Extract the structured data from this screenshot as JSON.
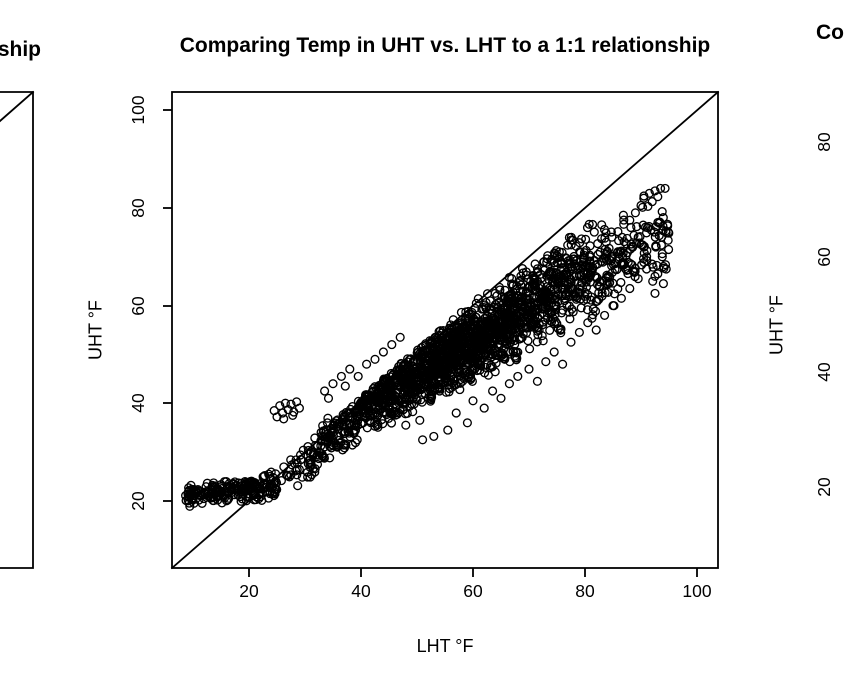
{
  "page": {
    "background_color": "#ffffff",
    "ink_color": "#000000",
    "description": "Three R base-graphics scatter plots side by side; only the center plot is fully visible, the left and right plots are cut off at the screen edges."
  },
  "panels": {
    "left_partial": {
      "title_fragment": "ship"
    },
    "right_partial": {
      "title_fragment": "Co",
      "y_tick_labels": [
        "80",
        "60",
        "40",
        "20"
      ],
      "ylabel": "UHT °F"
    }
  },
  "chart_data": {
    "type": "scatter",
    "title": "Comparing Temp in UHT vs. LHT to a 1:1 relationship",
    "xlabel": "LHT °F",
    "ylabel": "UHT °F",
    "xlim": [
      6.25,
      103.75
    ],
    "ylim": [
      6.25,
      103.75
    ],
    "x_ticks": [
      20,
      40,
      60,
      80,
      100
    ],
    "y_ticks": [
      20,
      40,
      60,
      80,
      100
    ],
    "x_tick_labels": [
      "20",
      "40",
      "60",
      "80",
      "100"
    ],
    "y_tick_labels": [
      "20",
      "40",
      "60",
      "80",
      "100"
    ],
    "grid": false,
    "legend": "none",
    "reference_line": {
      "name": "1:1 identity line",
      "from": [
        6.25,
        6.25
      ],
      "to": [
        103.75,
        103.75
      ]
    },
    "marker": {
      "shape": "open-circle",
      "radius_px": 3.9,
      "color": "#000000"
    },
    "points_estimate": 2300,
    "band": {
      "seed": 42,
      "n_points": 2200,
      "x_range": [
        8.6,
        95
      ],
      "center_by_x": [
        [
          8.6,
          21.0
        ],
        [
          16,
          22.0
        ],
        [
          20,
          22.3
        ],
        [
          25,
          23.5
        ],
        [
          30,
          28.0
        ],
        [
          35,
          33.5
        ],
        [
          40,
          38.8
        ],
        [
          50,
          46.0
        ],
        [
          60,
          52.5
        ],
        [
          70,
          59.5
        ],
        [
          80,
          66.5
        ],
        [
          90,
          72.5
        ],
        [
          95,
          75.0
        ]
      ],
      "halfwidth_by_x": [
        [
          8.6,
          2.4
        ],
        [
          16,
          3.0
        ],
        [
          20,
          3.2
        ],
        [
          25,
          3.5
        ],
        [
          30,
          4.5
        ],
        [
          40,
          6.5
        ],
        [
          50,
          8.0
        ],
        [
          60,
          9.0
        ],
        [
          70,
          10.0
        ],
        [
          80,
          10.5
        ],
        [
          90,
          10.0
        ],
        [
          95,
          8.0
        ]
      ]
    },
    "outliers_above": [
      [
        24.5,
        38.5
      ],
      [
        25.5,
        39.5
      ],
      [
        26,
        38
      ],
      [
        26.5,
        40
      ],
      [
        27,
        38.7
      ],
      [
        27.5,
        39.8
      ],
      [
        28,
        38.2
      ],
      [
        28.5,
        40.3
      ],
      [
        29,
        39
      ],
      [
        25,
        37.2
      ],
      [
        26.2,
        36.8
      ],
      [
        27.8,
        37.5
      ],
      [
        33.5,
        42.5
      ],
      [
        35,
        44
      ],
      [
        36.5,
        45.5
      ],
      [
        38,
        47
      ],
      [
        39.5,
        45.5
      ],
      [
        41,
        48
      ],
      [
        42.5,
        49
      ],
      [
        34.2,
        41
      ],
      [
        37.2,
        43.5
      ],
      [
        44,
        50.5
      ],
      [
        45.5,
        52
      ],
      [
        47,
        53.5
      ]
    ],
    "outliers_below": [
      [
        48,
        35.5
      ],
      [
        50.5,
        36.5
      ],
      [
        51,
        32.5
      ],
      [
        53,
        33.2
      ],
      [
        55.5,
        34.5
      ],
      [
        57,
        38
      ],
      [
        59,
        36
      ],
      [
        60,
        40.5
      ],
      [
        62,
        39
      ],
      [
        63.5,
        42.5
      ],
      [
        65,
        41
      ],
      [
        66.5,
        44
      ],
      [
        68,
        45.5
      ],
      [
        70,
        47
      ],
      [
        71.5,
        44.5
      ],
      [
        73,
        48.5
      ],
      [
        74.5,
        50.5
      ],
      [
        76,
        48
      ],
      [
        77.5,
        52.5
      ],
      [
        79,
        54.5
      ],
      [
        80.5,
        56.5
      ],
      [
        82,
        55
      ],
      [
        83.5,
        58
      ],
      [
        85,
        60
      ],
      [
        86.5,
        61.5
      ],
      [
        88,
        63.5
      ],
      [
        89.5,
        65.5
      ],
      [
        91,
        67.5
      ],
      [
        92.5,
        66
      ],
      [
        94,
        68
      ]
    ],
    "top_right_points": [
      [
        90,
        80.5
      ],
      [
        90.5,
        82
      ],
      [
        91.5,
        83
      ],
      [
        92.5,
        83.5
      ],
      [
        93.5,
        84
      ],
      [
        94.3,
        84
      ],
      [
        92,
        81.3
      ],
      [
        93,
        82.3
      ],
      [
        89,
        79
      ],
      [
        88,
        77.5
      ],
      [
        91,
        70
      ],
      [
        92,
        68.5
      ],
      [
        93,
        66.5
      ],
      [
        94,
        64.5
      ],
      [
        92.5,
        62.5
      ],
      [
        90.5,
        72
      ],
      [
        93.8,
        70
      ],
      [
        94.5,
        67.5
      ],
      [
        89.5,
        74
      ],
      [
        91.8,
        75.5
      ]
    ]
  }
}
